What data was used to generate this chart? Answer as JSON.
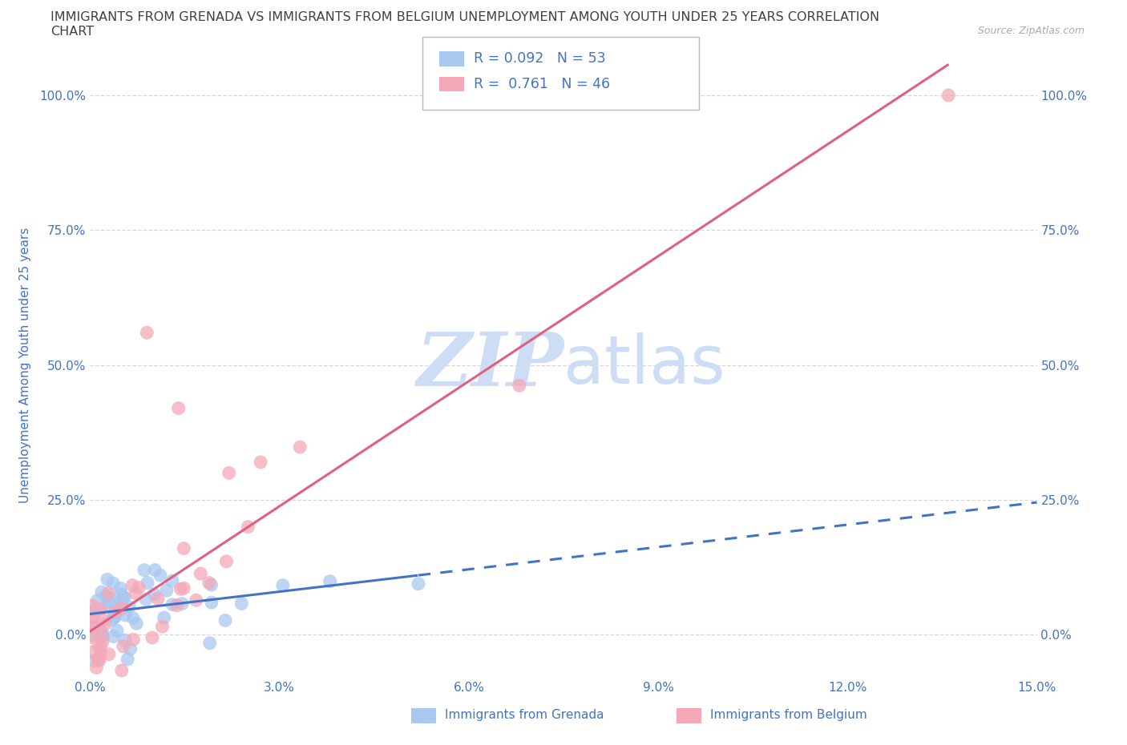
{
  "title_line1": "IMMIGRANTS FROM GRENADA VS IMMIGRANTS FROM BELGIUM UNEMPLOYMENT AMONG YOUTH UNDER 25 YEARS CORRELATION",
  "title_line2": "CHART",
  "source": "Source: ZipAtlas.com",
  "ylabel": "Unemployment Among Youth under 25 years",
  "xlim": [
    0.0,
    0.15
  ],
  "ylim": [
    -0.08,
    1.08
  ],
  "yticks": [
    0.0,
    0.25,
    0.5,
    0.75,
    1.0
  ],
  "ytick_labels": [
    "0.0%",
    "25.0%",
    "50.0%",
    "75.0%",
    "100.0%"
  ],
  "xticks": [
    0.0,
    0.03,
    0.06,
    0.09,
    0.12,
    0.15
  ],
  "xtick_labels": [
    "0.0%",
    "3.0%",
    "6.0%",
    "9.0%",
    "12.0%",
    "15.0%"
  ],
  "grenada_R": 0.092,
  "grenada_N": 53,
  "belgium_R": 0.761,
  "belgium_N": 46,
  "grenada_color": "#a8c8f0",
  "belgium_color": "#f4a8b8",
  "grenada_line_color": "#4472c4",
  "belgium_line_color": "#e06080",
  "watermark_color": "#ccddf5",
  "background_color": "#ffffff",
  "grid_color": "#cccccc",
  "title_color": "#404040",
  "axis_label_color": "#4472c4",
  "tick_label_color": "#4472c4",
  "legend_text_color": "#4472c4"
}
